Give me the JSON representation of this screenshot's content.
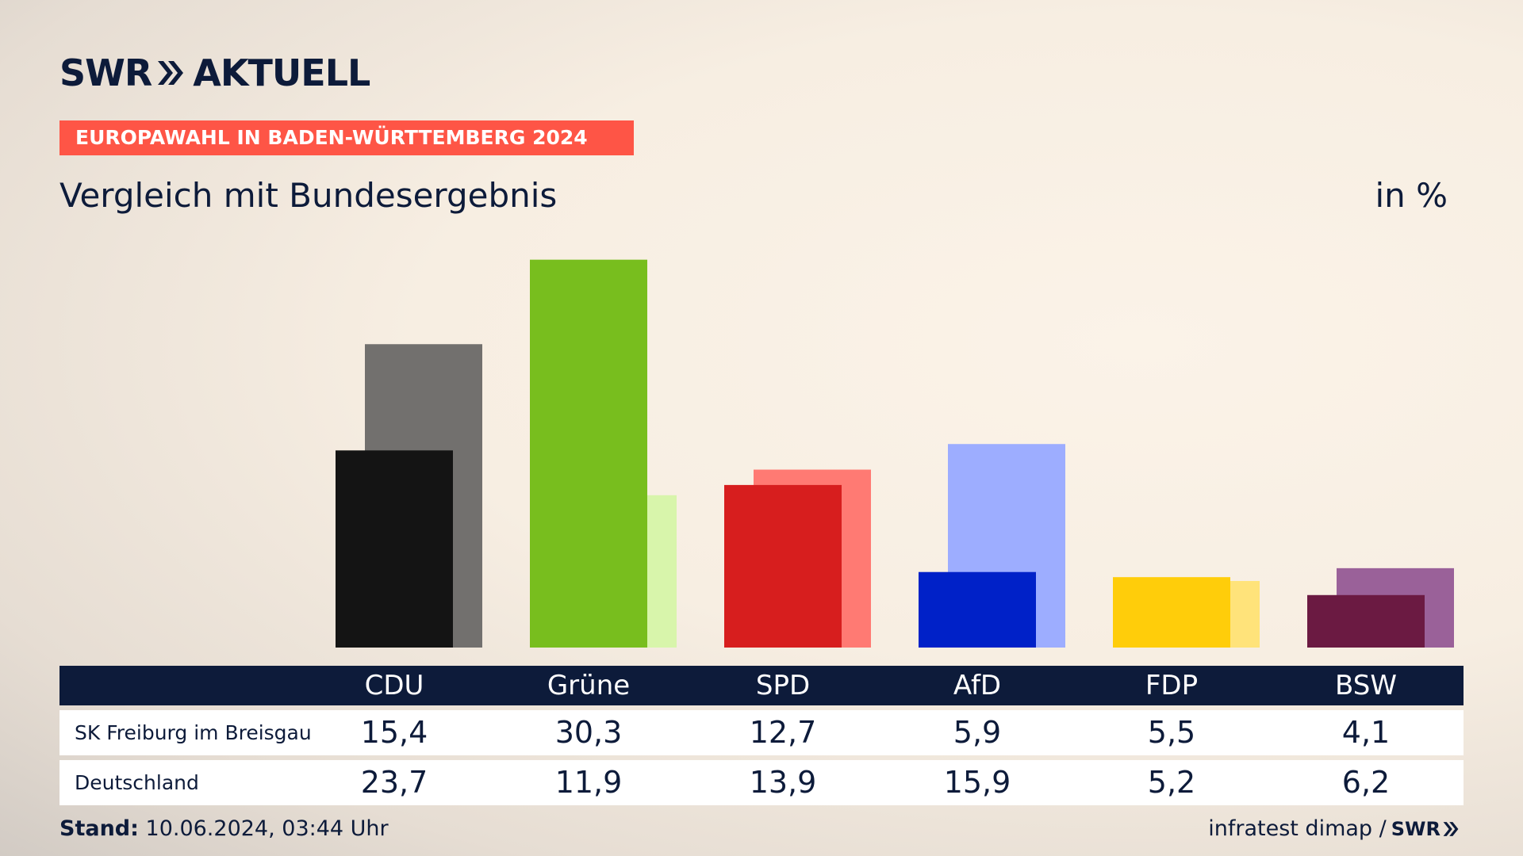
{
  "header": {
    "logo_left": "SWR",
    "logo_right": "AKTUELL",
    "logo_icon": "double-chevron-icon",
    "banner": "EUROPAWAHL IN BADEN-WÜRTTEMBERG 2024",
    "subtitle": "Vergleich mit Bundesergebnis",
    "unit": "in %"
  },
  "chart_data": {
    "type": "bar",
    "categories": [
      "CDU",
      "Grüne",
      "SPD",
      "AfD",
      "FDP",
      "BSW"
    ],
    "series": [
      {
        "name": "SK Freiburg im Breisgau",
        "values": [
          15.4,
          30.3,
          12.7,
          5.9,
          5.5,
          4.1
        ],
        "colors": [
          "#141414",
          "#78be1e",
          "#d71e1e",
          "#0021c8",
          "#ffcd0a",
          "#6b1a42"
        ]
      },
      {
        "name": "Deutschland",
        "values": [
          23.7,
          11.9,
          13.9,
          15.9,
          5.2,
          6.2
        ],
        "colors": [
          "#72706e",
          "#d8f5ab",
          "#ff7a73",
          "#9dadff",
          "#ffe37a",
          "#9a6199"
        ]
      }
    ],
    "value_labels": [
      [
        "15,4",
        "30,3",
        "12,7",
        "5,9",
        "5,5",
        "4,1"
      ],
      [
        "23,7",
        "11,9",
        "13,9",
        "15,9",
        "5,2",
        "6,2"
      ]
    ],
    "ylim": [
      0,
      32
    ]
  },
  "footer": {
    "stand_label": "Stand:",
    "stand_value": "10.06.2024, 03:44 Uhr",
    "source": "infratest dimap /",
    "source_logo": "SWR"
  }
}
